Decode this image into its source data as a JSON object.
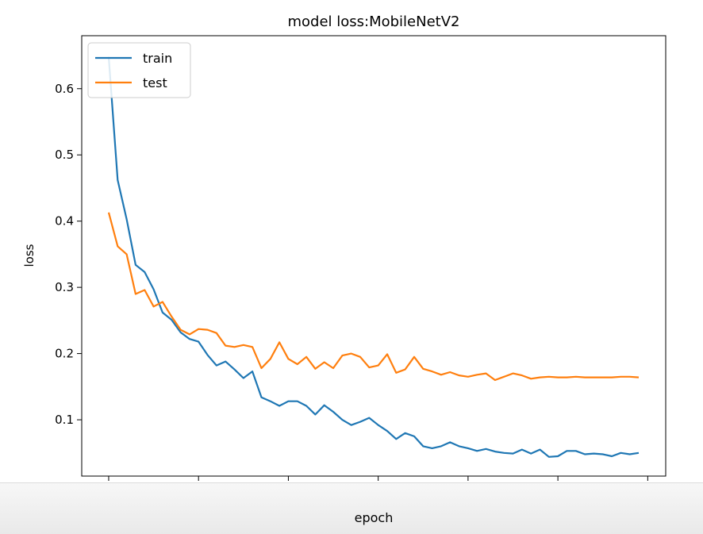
{
  "chart_data": {
    "type": "line",
    "title": "model loss:MobileNetV2",
    "xlabel": "epoch",
    "ylabel": "loss",
    "xlim": [
      -3,
      62
    ],
    "ylim": [
      0.015,
      0.68
    ],
    "xticks": [
      0,
      10,
      20,
      30,
      40,
      50,
      60
    ],
    "yticks": [
      0.1,
      0.2,
      0.3,
      0.4,
      0.5,
      0.6
    ],
    "grid": false,
    "legend": "top-left",
    "x": [
      0,
      1,
      2,
      3,
      4,
      5,
      6,
      7,
      8,
      9,
      10,
      11,
      12,
      13,
      14,
      15,
      16,
      17,
      18,
      19,
      20,
      21,
      22,
      23,
      24,
      25,
      26,
      27,
      28,
      29,
      30,
      31,
      32,
      33,
      34,
      35,
      36,
      37,
      38,
      39,
      40,
      41,
      42,
      43,
      44,
      45,
      46,
      47,
      48,
      49,
      50,
      51,
      52,
      53,
      54,
      55,
      56,
      57,
      58,
      59
    ],
    "series": [
      {
        "name": "train",
        "color": "#1f77b4",
        "values": [
          0.648,
          0.462,
          0.403,
          0.334,
          0.323,
          0.297,
          0.262,
          0.251,
          0.232,
          0.222,
          0.218,
          0.198,
          0.182,
          0.188,
          0.176,
          0.163,
          0.173,
          0.134,
          0.128,
          0.121,
          0.128,
          0.128,
          0.121,
          0.108,
          0.122,
          0.112,
          0.1,
          0.092,
          0.097,
          0.103,
          0.092,
          0.083,
          0.071,
          0.08,
          0.075,
          0.06,
          0.057,
          0.06,
          0.066,
          0.06,
          0.057,
          0.053,
          0.056,
          0.052,
          0.05,
          0.049,
          0.055,
          0.049,
          0.055,
          0.044,
          0.045,
          0.053,
          0.053,
          0.048,
          0.049,
          0.048,
          0.045,
          0.05,
          0.048,
          0.05
        ]
      },
      {
        "name": "test",
        "color": "#ff7f0e",
        "values": [
          0.413,
          0.362,
          0.35,
          0.29,
          0.296,
          0.271,
          0.278,
          0.256,
          0.236,
          0.229,
          0.237,
          0.236,
          0.231,
          0.212,
          0.21,
          0.213,
          0.21,
          0.178,
          0.192,
          0.217,
          0.192,
          0.184,
          0.195,
          0.177,
          0.187,
          0.178,
          0.197,
          0.2,
          0.195,
          0.179,
          0.182,
          0.199,
          0.171,
          0.176,
          0.195,
          0.177,
          0.173,
          0.168,
          0.172,
          0.167,
          0.165,
          0.168,
          0.17,
          0.16,
          0.165,
          0.17,
          0.167,
          0.162,
          0.164,
          0.165,
          0.164,
          0.164,
          0.165,
          0.164,
          0.164,
          0.164,
          0.164,
          0.165,
          0.165,
          0.164
        ]
      }
    ]
  }
}
